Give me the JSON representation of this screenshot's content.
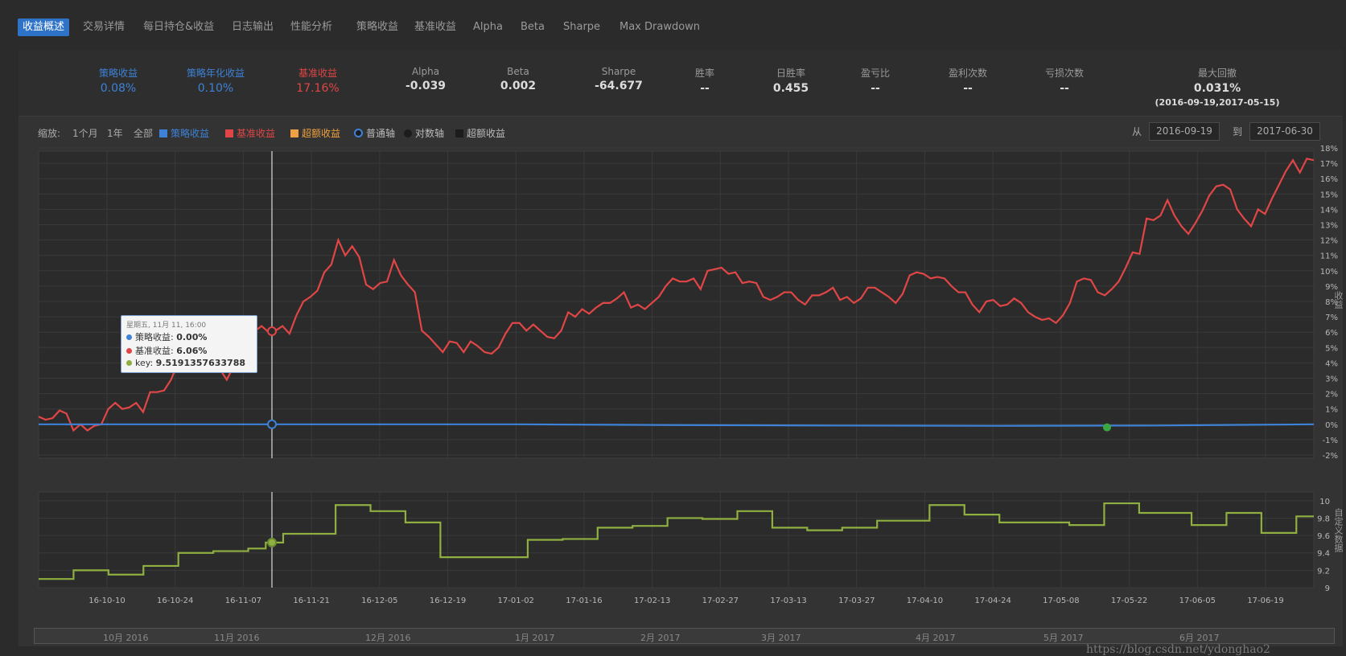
{
  "tabs": [
    {
      "label": "收益概述",
      "active": true
    },
    {
      "label": "交易详情"
    },
    {
      "label": "每日持仓&收益"
    },
    {
      "label": "日志输出"
    },
    {
      "label": "性能分析"
    },
    {
      "label": "策略收益"
    },
    {
      "label": "基准收益"
    },
    {
      "label": "Alpha"
    },
    {
      "label": "Beta"
    },
    {
      "label": "Sharpe"
    },
    {
      "label": "Max Drawdown"
    }
  ],
  "stats": [
    {
      "label": "策略收益",
      "value": "0.08%",
      "color": "blue"
    },
    {
      "label": "策略年化收益",
      "value": "0.10%",
      "color": "blue"
    },
    {
      "label": "基准收益",
      "value": "17.16%",
      "color": "red"
    },
    {
      "label": "Alpha",
      "value": "-0.039"
    },
    {
      "label": "Beta",
      "value": "0.002"
    },
    {
      "label": "Sharpe",
      "value": "-64.677"
    },
    {
      "label": "胜率",
      "value": "--"
    },
    {
      "label": "日胜率",
      "value": "0.455"
    },
    {
      "label": "盈亏比",
      "value": "--"
    },
    {
      "label": "盈利次数",
      "value": "--"
    },
    {
      "label": "亏损次数",
      "value": "--"
    },
    {
      "label": "最大回撤",
      "value": "0.031%",
      "sub": "(2016-09-19,2017-05-15)"
    }
  ],
  "controls": {
    "zoom_label": "缩放:",
    "zoom_options": [
      "1个月",
      "1年",
      "全部"
    ],
    "legend": [
      {
        "label": "策略收益",
        "color": "#3d82d6"
      },
      {
        "label": "基准收益",
        "color": "#e04646"
      },
      {
        "label": "超额收益",
        "color": "#f0a040"
      }
    ],
    "axis_modes": [
      {
        "label": "普通轴",
        "selected": true
      },
      {
        "label": "对数轴",
        "selected": false
      },
      {
        "label": "超额收益",
        "checkbox": true
      }
    ],
    "from_label": "从",
    "from_value": "2016-09-19",
    "to_label": "到",
    "to_value": "2017-06-30"
  },
  "tooltip": {
    "header": "星期五, 11月 11, 16:00",
    "rows": [
      {
        "name": "策略收益",
        "value": "0.00%",
        "color": "#3d82d6"
      },
      {
        "name": "基准收益",
        "value": "6.06%",
        "color": "#e04646"
      },
      {
        "name": "key",
        "value": "9.5191357633788",
        "color": "#8fb040"
      }
    ]
  },
  "chart_data": [
    {
      "type": "line",
      "ylabel": "收益",
      "ylim": [
        -2,
        18
      ],
      "yticks": [
        "18%",
        "17%",
        "16%",
        "15%",
        "14%",
        "13%",
        "12%",
        "11%",
        "10%",
        "9%",
        "8%",
        "7%",
        "6%",
        "5%",
        "4%",
        "3%",
        "2%",
        "1%",
        "0%",
        "-1%",
        "-2%"
      ],
      "series": [
        {
          "name": "基准收益",
          "color": "#e04646",
          "values": [
            0.5,
            0.3,
            0.4,
            0.9,
            0.7,
            -0.4,
            0.0,
            -0.4,
            -0.1,
            0.0,
            1.0,
            1.4,
            1.0,
            1.1,
            1.4,
            0.8,
            2.1,
            2.1,
            2.2,
            2.9,
            4.0,
            4.3,
            3.7,
            3.8,
            3.5,
            3.4,
            3.6,
            2.9,
            3.8,
            4.2,
            5.0,
            6.06,
            6.4,
            6.0,
            6.1,
            6.4,
            5.9,
            7.1,
            8.0,
            8.3,
            8.7,
            9.9,
            10.4,
            12.0,
            11.0,
            11.6,
            10.9,
            9.1,
            8.8,
            9.2,
            9.3,
            10.7,
            9.7,
            9.1,
            8.6,
            6.1,
            5.7,
            5.2,
            4.7,
            5.4,
            5.3,
            4.7,
            5.4,
            5.1,
            4.7,
            4.6,
            5.0,
            5.9,
            6.6,
            6.6,
            6.1,
            6.5,
            6.1,
            5.7,
            5.6,
            6.1,
            7.3,
            7.0,
            7.5,
            7.2,
            7.6,
            7.9,
            7.9,
            8.2,
            8.6,
            7.6,
            7.8,
            7.5,
            7.9,
            8.3,
            9.0,
            9.5,
            9.3,
            9.3,
            9.5,
            8.8,
            10.0,
            10.1,
            10.2,
            9.8,
            9.9,
            9.2,
            9.3,
            9.2,
            8.3,
            8.1,
            8.3,
            8.6,
            8.6,
            8.1,
            7.8,
            8.4,
            8.4,
            8.6,
            8.9,
            8.1,
            8.3,
            7.9,
            8.2,
            8.9,
            8.9,
            8.6,
            8.3,
            7.9,
            8.5,
            9.7,
            9.9,
            9.8,
            9.5,
            9.6,
            9.5,
            9.0,
            8.6,
            8.6,
            7.8,
            7.3,
            8.0,
            8.1,
            7.7,
            7.8,
            8.2,
            7.9,
            7.3,
            7.0,
            6.8,
            6.9,
            6.6,
            7.1,
            7.9,
            9.3,
            9.5,
            9.4,
            8.6,
            8.4,
            8.8,
            9.3,
            10.2,
            11.2,
            11.1,
            13.4,
            13.3,
            13.6,
            14.6,
            13.6,
            12.9,
            12.4,
            13.1,
            13.9,
            14.9,
            15.5,
            15.6,
            15.3,
            14.0,
            13.4,
            12.9,
            14.0,
            13.7,
            14.7,
            15.6,
            16.5,
            17.2,
            16.4,
            17.3,
            17.2
          ]
        },
        {
          "name": "策略收益",
          "color": "#3d82d6",
          "values": [
            0.0,
            0.0,
            0.0,
            0.0,
            -0.05,
            -0.08,
            -0.1,
            -0.08,
            0.0
          ]
        }
      ]
    },
    {
      "type": "line",
      "ylabel": "自定义数据",
      "ylim": [
        9.0,
        10.1
      ],
      "yticks": [
        "10",
        "9.8",
        "9.6",
        "9.4",
        "9.2",
        "9"
      ],
      "series": [
        {
          "name": "key",
          "color": "#8fb040",
          "values": [
            9.1,
            9.1,
            9.2,
            9.2,
            9.15,
            9.15,
            9.25,
            9.25,
            9.4,
            9.4,
            9.42,
            9.42,
            9.45,
            9.5191,
            9.62,
            9.62,
            9.62,
            9.95,
            9.95,
            9.88,
            9.88,
            9.75,
            9.75,
            9.35,
            9.35,
            9.35,
            9.35,
            9.35,
            9.55,
            9.55,
            9.56,
            9.56,
            9.69,
            9.69,
            9.71,
            9.71,
            9.8,
            9.8,
            9.79,
            9.79,
            9.88,
            9.88,
            9.69,
            9.69,
            9.66,
            9.66,
            9.69,
            9.69,
            9.77,
            9.77,
            9.77,
            9.95,
            9.95,
            9.84,
            9.84,
            9.75,
            9.75,
            9.75,
            9.75,
            9.72,
            9.72,
            9.97,
            9.97,
            9.86,
            9.86,
            9.86,
            9.72,
            9.72,
            9.86,
            9.86,
            9.63,
            9.63,
            9.82,
            9.82
          ]
        }
      ]
    }
  ],
  "x_ticks": [
    "16-10-10",
    "16-10-24",
    "16-11-07",
    "16-11-21",
    "16-12-05",
    "16-12-19",
    "17-01-02",
    "17-01-16",
    "17-02-13",
    "17-02-27",
    "17-03-13",
    "17-03-27",
    "17-04-10",
    "17-04-24",
    "17-05-08",
    "17-05-22",
    "17-06-05",
    "17-06-19"
  ],
  "navigator_labels": [
    "10月 2016",
    "11月 2016",
    "12月 2016",
    "1月 2017",
    "2月 2017",
    "3月 2017",
    "4月 2017",
    "5月 2017",
    "6月 2017"
  ],
  "watermark": "https://blog.csdn.net/ydonghao2"
}
